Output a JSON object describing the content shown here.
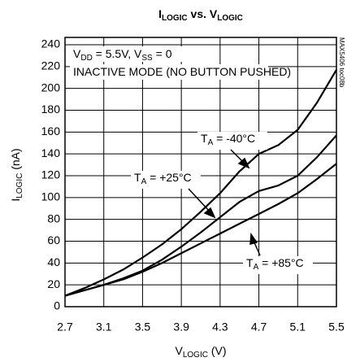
{
  "chart_data": {
    "type": "line",
    "title": [
      "I",
      "LOGIC",
      " vs. V",
      "LOGIC"
    ],
    "x_label": [
      "V",
      "LOGIC",
      " (V)"
    ],
    "y_label": [
      "I",
      "LOGIC",
      " (nA)"
    ],
    "annotations": [
      [
        "V",
        "DD",
        " = 5.5V, V",
        "SS",
        " = 0"
      ],
      [
        "INACTIVE MODE (NO BUTTON PUSHED)"
      ]
    ],
    "side_note": "MAX5406 toc08b",
    "x": [
      2.7,
      2.9,
      3.1,
      3.3,
      3.5,
      3.7,
      3.9,
      4.1,
      4.3,
      4.5,
      4.7,
      4.9,
      5.1,
      5.3,
      5.5
    ],
    "series": [
      {
        "name": [
          "T",
          "A",
          " = -40°C"
        ],
        "color": "#000000",
        "values": [
          10,
          17,
          25,
          34,
          45,
          57,
          71,
          87,
          104,
          124,
          140,
          148,
          162,
          187,
          217
        ]
      },
      {
        "name": [
          "T",
          "A",
          " = +25°C"
        ],
        "color": "#000000",
        "values": [
          10,
          15,
          20,
          26,
          33,
          43,
          55,
          68,
          82,
          96,
          106,
          111,
          120,
          137,
          157
        ]
      },
      {
        "name": [
          "T",
          "A",
          " = +85°C"
        ],
        "color": "#000000",
        "values": [
          10,
          15,
          20,
          25,
          32,
          40,
          49,
          58,
          67,
          76,
          85,
          94,
          104,
          117,
          131
        ]
      }
    ],
    "xlim": [
      2.7,
      5.5
    ],
    "xticks": [
      2.7,
      3.1,
      3.5,
      3.9,
      4.3,
      4.7,
      5.1,
      5.5
    ],
    "ylim": [
      0,
      240
    ],
    "yticks": [
      0,
      20,
      40,
      60,
      80,
      100,
      120,
      140,
      160,
      180,
      200,
      220,
      240
    ],
    "grid": true
  }
}
